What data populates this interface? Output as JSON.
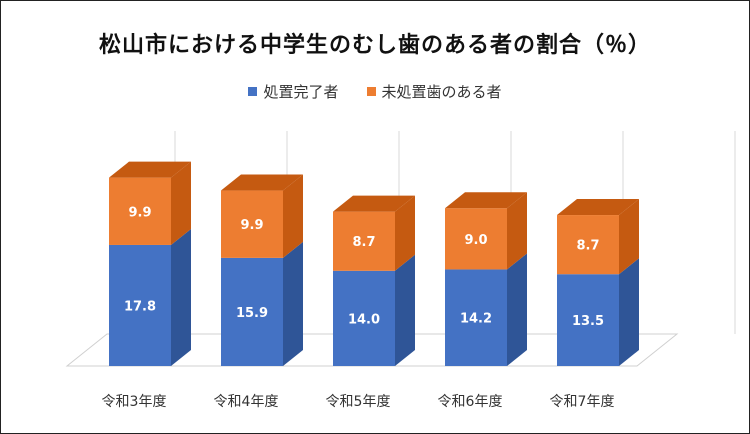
{
  "chart_data": {
    "type": "bar",
    "stacked": true,
    "three_d": true,
    "title": "松山市における中学生のむし歯のある者の割合（％）",
    "categories": [
      "令和3年度",
      "令和4年度",
      "令和5年度",
      "令和6年度",
      "令和7年度"
    ],
    "series": [
      {
        "name": "処置完了者",
        "values": [
          17.8,
          15.9,
          14.0,
          14.2,
          13.5
        ],
        "color": "#4472C4",
        "side_color": "#2F5597"
      },
      {
        "name": "未処置歯のある者",
        "values": [
          9.9,
          9.9,
          8.7,
          9.0,
          8.7
        ],
        "color": "#ED7D31",
        "side_color": "#C55A11"
      }
    ],
    "legend_position": "top",
    "grid": true
  }
}
